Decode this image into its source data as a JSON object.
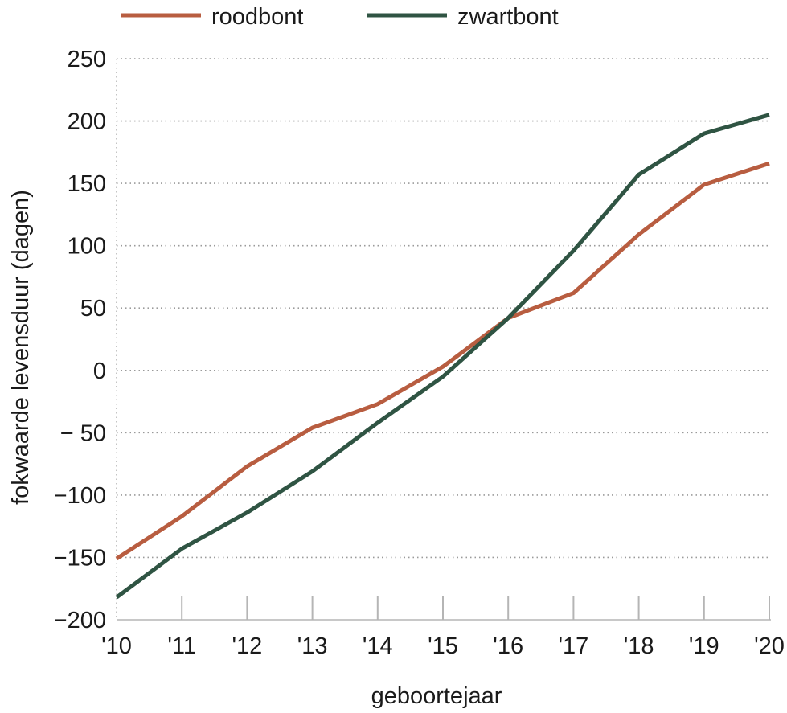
{
  "chart_data": {
    "type": "line",
    "x": [
      "'10",
      "'11",
      "'12",
      "'13",
      "'14",
      "'15",
      "'16",
      "'17",
      "'18",
      "'19",
      "'20"
    ],
    "series": [
      {
        "name": "roodbont",
        "color": "#b85d40",
        "values": [
          -151,
          -117,
          -77,
          -46,
          -27,
          3,
          42,
          62,
          109,
          149,
          166
        ]
      },
      {
        "name": "zwartbont",
        "color": "#2f5443",
        "values": [
          -182,
          -143,
          -114,
          -81,
          -42,
          -5,
          42,
          96,
          157,
          190,
          205
        ]
      }
    ],
    "yticks": [
      "250",
      "200",
      "150",
      "100",
      "50",
      "0",
      "− 50",
      "−100",
      "−150",
      "−200"
    ],
    "ytick_values": [
      250,
      200,
      150,
      100,
      50,
      0,
      -50,
      -100,
      -150,
      -200
    ],
    "xlabel": "geboortejaar",
    "ylabel": "fokwaarde levensduur (dagen)",
    "ylim": [
      -200,
      250
    ],
    "grid": "horizontal dotted",
    "legend": "top"
  }
}
